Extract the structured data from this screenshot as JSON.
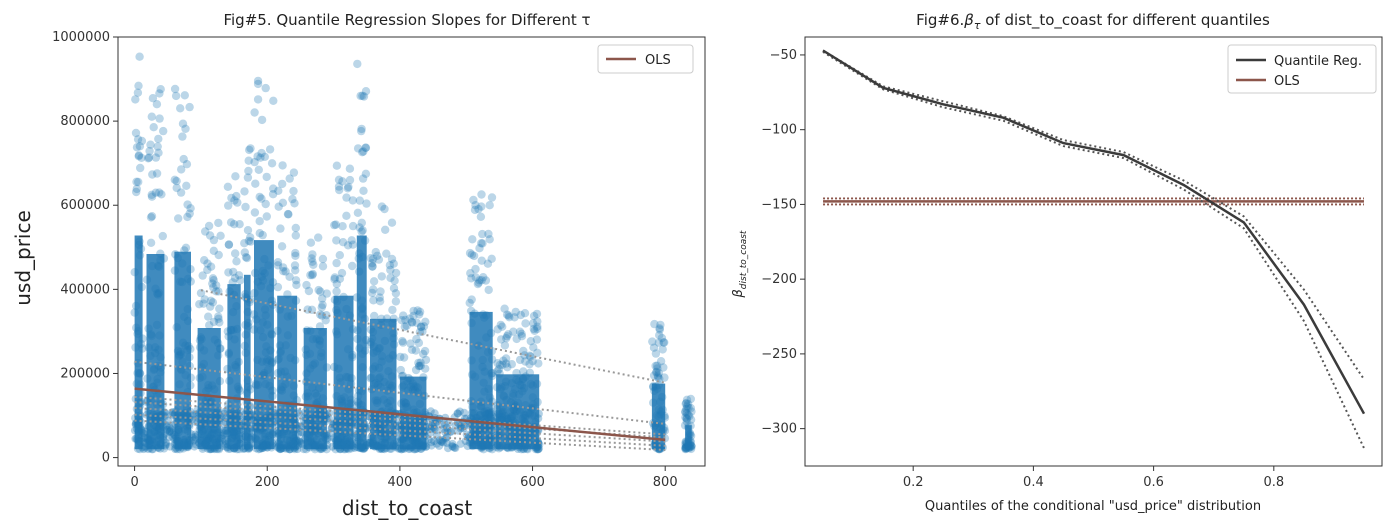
{
  "chart_data": [
    {
      "type": "scatter",
      "title": "Fig#5. Quantile Regression Slopes for Different τ",
      "xlabel": "dist_to_coast",
      "ylabel": "usd_price",
      "xlim": [
        -25,
        860
      ],
      "ylim": [
        -20000,
        1000000
      ],
      "xticks": [
        0,
        200,
        400,
        600,
        800
      ],
      "yticks": [
        0,
        200000,
        400000,
        600000,
        800000,
        1000000
      ],
      "legend": {
        "position": "top-right",
        "entries": [
          "OLS"
        ]
      },
      "colors": {
        "points": "#1f77b4",
        "ols": "#8c564b",
        "quantile": "#999999"
      },
      "point_clusters": [
        {
          "x": [
            0,
            12
          ],
          "y_max": 960000
        },
        {
          "x": [
            18,
            45
          ],
          "y_max": 880000
        },
        {
          "x": [
            60,
            85
          ],
          "y_max": 890000
        },
        {
          "x": [
            95,
            130
          ],
          "y_max": 560000
        },
        {
          "x": [
            140,
            160
          ],
          "y_max": 750000
        },
        {
          "x": [
            165,
            175
          ],
          "y_max": 790000
        },
        {
          "x": [
            180,
            210
          ],
          "y_max": 940000
        },
        {
          "x": [
            215,
            245
          ],
          "y_max": 700000
        },
        {
          "x": [
            255,
            290
          ],
          "y_max": 560000
        },
        {
          "x": [
            300,
            330
          ],
          "y_max": 700000
        },
        {
          "x": [
            335,
            350
          ],
          "y_max": 960000
        },
        {
          "x": [
            355,
            395
          ],
          "y_max": 600000
        },
        {
          "x": [
            400,
            440
          ],
          "y_max": 350000
        },
        {
          "x": [
            505,
            540
          ],
          "y_max": 630000
        },
        {
          "x": [
            545,
            610
          ],
          "y_max": 360000
        },
        {
          "x": [
            780,
            800
          ],
          "y_max": 320000
        },
        {
          "x": [
            830,
            840
          ],
          "y_max": 140000
        }
      ],
      "ols_line": {
        "x": [
          0,
          800
        ],
        "y": [
          164000,
          42000
        ]
      },
      "quantile_lines": [
        {
          "x": [
            100,
            800
          ],
          "y": [
            398000,
            178000
          ]
        },
        {
          "x": [
            0,
            800
          ],
          "y": [
            228000,
            80000
          ]
        },
        {
          "x": [
            0,
            800
          ],
          "y": [
            144000,
            55000
          ]
        },
        {
          "x": [
            0,
            800
          ],
          "y": [
            132000,
            48000
          ]
        },
        {
          "x": [
            0,
            800
          ],
          "y": [
            118000,
            38000
          ]
        },
        {
          "x": [
            0,
            800
          ],
          "y": [
            102000,
            28000
          ]
        },
        {
          "x": [
            0,
            800
          ],
          "y": [
            88000,
            18000
          ]
        }
      ]
    },
    {
      "type": "line",
      "title": "Fig#6.",
      "title_beta": "β",
      "title_tau": "τ",
      "title_rest": " of dist_to_coast for different quantiles",
      "xlabel": "Quantiles of the conditional \"usd_price\" distribution",
      "ylabel": "β",
      "ylabel_sub": "dist_to_coast",
      "xlim": [
        0.02,
        0.98
      ],
      "ylim": [
        -325,
        -38
      ],
      "xticks": [
        0.2,
        0.4,
        0.6,
        0.8
      ],
      "yticks": [
        -50,
        -100,
        -150,
        -200,
        -250,
        -300
      ],
      "legend": {
        "position": "top-right",
        "entries": [
          "Quantile Reg.",
          "OLS"
        ]
      },
      "colors": {
        "quantile": "#3b3b3b",
        "ols": "#8c564b",
        "ci": "#555555"
      },
      "series": [
        {
          "name": "Quantile Reg.",
          "x": [
            0.05,
            0.15,
            0.25,
            0.35,
            0.45,
            0.55,
            0.65,
            0.75,
            0.85,
            0.95
          ],
          "y": [
            -47,
            -72,
            -83,
            -92,
            -109,
            -117,
            -137,
            -162,
            -217,
            -290
          ]
        },
        {
          "name": "OLS",
          "x": [
            0.05,
            0.95
          ],
          "y": [
            -148,
            -148
          ]
        }
      ],
      "quantile_ci_upper": [
        -47,
        -71,
        -81,
        -91,
        -107,
        -115,
        -134,
        -158,
        -207,
        -267
      ],
      "quantile_ci_lower": [
        -48,
        -73,
        -85,
        -94,
        -111,
        -119,
        -140,
        -166,
        -228,
        -313
      ],
      "ols_ci": [
        -146,
        -150
      ]
    }
  ]
}
